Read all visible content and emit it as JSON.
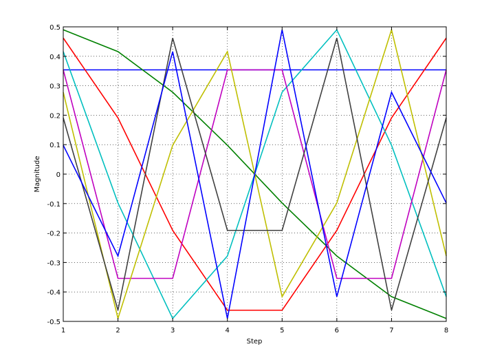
{
  "chart_data": {
    "type": "line",
    "title": "",
    "xlabel": "Step",
    "ylabel": "Magnitude",
    "xlim": [
      1,
      8
    ],
    "ylim": [
      -0.5,
      0.5
    ],
    "x_ticks": [
      1,
      2,
      3,
      4,
      5,
      6,
      7,
      8
    ],
    "y_ticks": [
      -0.5,
      -0.4,
      -0.3,
      -0.2,
      -0.1,
      0,
      0.1,
      0.2,
      0.3,
      0.4,
      0.5
    ],
    "y_tick_labels": [
      "-0.5",
      "-0.4",
      "-0.3",
      "-0.2",
      "-0.1",
      "0",
      "0.1",
      "0.2",
      "0.3",
      "0.4",
      "0.5"
    ],
    "x_tick_labels": [
      "1",
      "2",
      "3",
      "4",
      "5",
      "6",
      "7",
      "8"
    ],
    "grid": true,
    "x": [
      1,
      2,
      3,
      4,
      5,
      6,
      7,
      8
    ],
    "series": [
      {
        "color": "#0000ff",
        "values": [
          0.354,
          0.354,
          0.354,
          0.354,
          0.354,
          0.354,
          0.354,
          0.354
        ]
      },
      {
        "color": "#008000",
        "values": [
          0.49,
          0.416,
          0.278,
          0.098,
          -0.098,
          -0.278,
          -0.416,
          -0.49
        ]
      },
      {
        "color": "#ff0000",
        "values": [
          0.462,
          0.191,
          -0.191,
          -0.462,
          -0.462,
          -0.191,
          0.191,
          0.462
        ]
      },
      {
        "color": "#00bfbf",
        "values": [
          0.416,
          -0.098,
          -0.49,
          -0.278,
          0.278,
          0.49,
          0.098,
          -0.416
        ]
      },
      {
        "color": "#bf00bf",
        "values": [
          0.354,
          -0.354,
          -0.354,
          0.354,
          0.354,
          -0.354,
          -0.354,
          0.354
        ]
      },
      {
        "color": "#bfbf00",
        "values": [
          0.278,
          -0.49,
          0.098,
          0.416,
          -0.416,
          -0.098,
          0.49,
          -0.278
        ]
      },
      {
        "color": "#404040",
        "values": [
          0.191,
          -0.462,
          0.462,
          -0.191,
          -0.191,
          0.462,
          -0.462,
          0.191
        ]
      },
      {
        "color": "#0000ff",
        "values": [
          0.098,
          -0.278,
          0.416,
          -0.49,
          0.49,
          -0.416,
          0.278,
          -0.098
        ]
      }
    ]
  }
}
